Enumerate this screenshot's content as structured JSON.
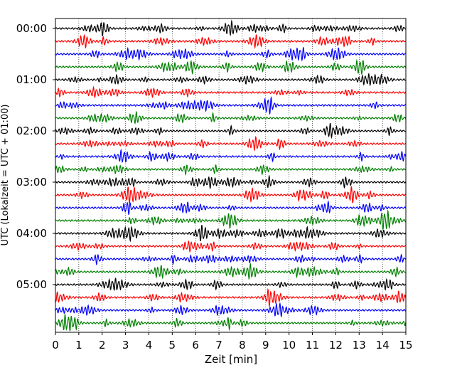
{
  "chart_data": {
    "type": "line",
    "title": "",
    "xlabel": "Zeit  [min]",
    "ylabel": "UTC (Lokalzeit = UTC + 01:00)",
    "xlim": [
      0,
      15
    ],
    "x_ticks": [
      0,
      1,
      2,
      3,
      4,
      5,
      6,
      7,
      8,
      9,
      10,
      11,
      12,
      13,
      14,
      15
    ],
    "x_tick_labels": [
      "0",
      "1",
      "2",
      "3",
      "4",
      "5",
      "6",
      "7",
      "8",
      "9",
      "10",
      "11",
      "12",
      "13",
      "14",
      "15"
    ],
    "y_tick_labels": [
      "00:00",
      "01:00",
      "02:00",
      "03:00",
      "04:00",
      "05:00"
    ],
    "y_tick_rows": [
      0,
      4,
      8,
      12,
      16,
      20
    ],
    "grid": "vertical-dotted",
    "trace_count": 24,
    "trace_minutes": 15,
    "trace_colors": [
      "#000000",
      "#ff0000",
      "#0000ff",
      "#008000"
    ]
  }
}
